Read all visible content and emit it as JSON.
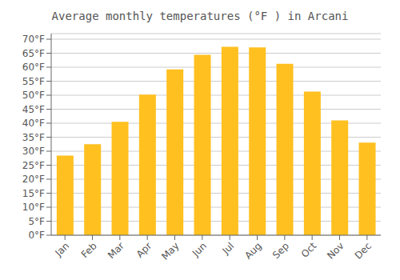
{
  "chart_data": {
    "type": "bar",
    "title": "Average monthly temperatures (°F ) in Arcani",
    "categories": [
      "Jan",
      "Feb",
      "Mar",
      "Apr",
      "May",
      "Jun",
      "Jul",
      "Aug",
      "Sep",
      "Oct",
      "Nov",
      "Dec"
    ],
    "values": [
      28.4,
      32.5,
      40.5,
      50.2,
      59.2,
      64.4,
      67.3,
      67.1,
      61.2,
      51.3,
      41.0,
      33.1
    ],
    "color": "#FFC020",
    "ylim": [
      0,
      72
    ],
    "yticks": [
      {
        "value": 0,
        "label": "0°F"
      },
      {
        "value": 5,
        "label": "5°F"
      },
      {
        "value": 10,
        "label": "10°F"
      },
      {
        "value": 15,
        "label": "15°F"
      },
      {
        "value": 20,
        "label": "20°F"
      },
      {
        "value": 25,
        "label": "25°F"
      },
      {
        "value": 30,
        "label": "30°F"
      },
      {
        "value": 35,
        "label": "35°F"
      },
      {
        "value": 40,
        "label": "40°F"
      },
      {
        "value": 45,
        "label": "45°F"
      },
      {
        "value": 50,
        "label": "50°F"
      },
      {
        "value": 55,
        "label": "55°F"
      },
      {
        "value": 60,
        "label": "60°F"
      },
      {
        "value": 65,
        "label": "65°F"
      },
      {
        "value": 70,
        "label": "70°F"
      }
    ],
    "grid": true
  }
}
